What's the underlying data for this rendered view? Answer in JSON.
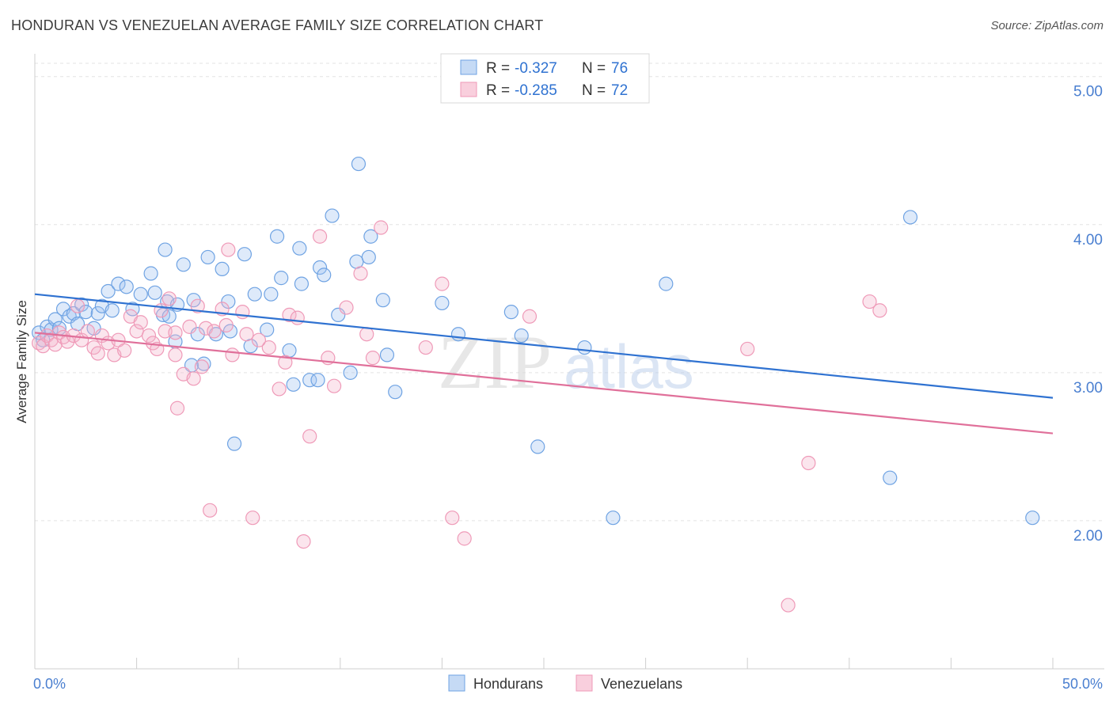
{
  "title": "HONDURAN VS VENEZUELAN AVERAGE FAMILY SIZE CORRELATION CHART",
  "source": "Source: ZipAtlas.com",
  "colors": {
    "blue": "#6fa3e3",
    "blue_line": "#2f72d1",
    "pink": "#ef9ab8",
    "pink_line": "#e0709a",
    "tick_text": "#4a7fd0"
  },
  "legend": {
    "items": [
      {
        "r_label": "R =",
        "r_value": "-0.327",
        "n_label": "N =",
        "n_value": "76"
      },
      {
        "r_label": "R =",
        "r_value": "-0.285",
        "n_label": "N =",
        "n_value": "72"
      }
    ]
  },
  "bottom_legend": {
    "hondurans": "Hondurans",
    "venezuelans": "Venezuelans"
  },
  "watermark": {
    "zip": "ZIP",
    "atlas": "atlas"
  },
  "chart_data": {
    "type": "scatter",
    "title": "HONDURAN VS VENEZUELAN AVERAGE FAMILY SIZE CORRELATION CHART",
    "xlabel": "",
    "ylabel": "Average Family Size",
    "xlim": [
      0,
      50
    ],
    "ylim": [
      1.0,
      5.1
    ],
    "x_tick_labels": [
      "0.0%",
      "50.0%"
    ],
    "y_ticks": [
      2.0,
      3.0,
      4.0,
      5.0
    ],
    "y_tick_labels": [
      "2.00",
      "3.00",
      "4.00",
      "5.00"
    ],
    "grid": true,
    "legend_position": "top-center",
    "series": [
      {
        "name": "Hondurans",
        "color": "#6fa3e3",
        "trend": {
          "x0": 0,
          "y0": 3.53,
          "x1": 50,
          "y1": 2.83
        },
        "points": [
          [
            0.2,
            3.27
          ],
          [
            0.4,
            3.22
          ],
          [
            0.6,
            3.31
          ],
          [
            0.8,
            3.29
          ],
          [
            1.0,
            3.36
          ],
          [
            1.2,
            3.3
          ],
          [
            1.4,
            3.43
          ],
          [
            1.7,
            3.38
          ],
          [
            1.9,
            3.4
          ],
          [
            2.1,
            3.33
          ],
          [
            2.3,
            3.46
          ],
          [
            2.5,
            3.41
          ],
          [
            2.9,
            3.3
          ],
          [
            3.1,
            3.4
          ],
          [
            3.3,
            3.45
          ],
          [
            3.6,
            3.55
          ],
          [
            3.8,
            3.42
          ],
          [
            4.1,
            3.6
          ],
          [
            4.5,
            3.58
          ],
          [
            4.8,
            3.43
          ],
          [
            5.2,
            3.53
          ],
          [
            5.7,
            3.67
          ],
          [
            5.9,
            3.54
          ],
          [
            6.3,
            3.39
          ],
          [
            6.5,
            3.48
          ],
          [
            6.4,
            3.83
          ],
          [
            6.6,
            3.38
          ],
          [
            6.9,
            3.21
          ],
          [
            7.0,
            3.46
          ],
          [
            7.3,
            3.73
          ],
          [
            7.7,
            3.05
          ],
          [
            7.8,
            3.49
          ],
          [
            8.0,
            3.26
          ],
          [
            8.3,
            3.06
          ],
          [
            8.5,
            3.78
          ],
          [
            8.9,
            3.26
          ],
          [
            9.2,
            3.7
          ],
          [
            9.6,
            3.28
          ],
          [
            9.5,
            3.48
          ],
          [
            9.8,
            2.52
          ],
          [
            10.3,
            3.8
          ],
          [
            10.6,
            3.18
          ],
          [
            10.8,
            3.53
          ],
          [
            11.4,
            3.29
          ],
          [
            11.6,
            3.53
          ],
          [
            11.9,
            3.92
          ],
          [
            12.1,
            3.64
          ],
          [
            12.5,
            3.15
          ],
          [
            12.7,
            2.92
          ],
          [
            13.0,
            3.84
          ],
          [
            13.1,
            3.6
          ],
          [
            13.5,
            2.95
          ],
          [
            13.9,
            2.95
          ],
          [
            14.0,
            3.71
          ],
          [
            14.2,
            3.66
          ],
          [
            14.6,
            4.06
          ],
          [
            14.9,
            3.39
          ],
          [
            15.5,
            3.0
          ],
          [
            15.8,
            3.75
          ],
          [
            15.9,
            4.41
          ],
          [
            16.4,
            3.78
          ],
          [
            16.5,
            3.92
          ],
          [
            17.1,
            3.49
          ],
          [
            17.3,
            3.12
          ],
          [
            17.7,
            2.87
          ],
          [
            20.0,
            3.47
          ],
          [
            20.8,
            3.26
          ],
          [
            23.4,
            3.41
          ],
          [
            23.9,
            3.25
          ],
          [
            24.7,
            2.5
          ],
          [
            27.0,
            3.17
          ],
          [
            28.4,
            2.02
          ],
          [
            31.0,
            3.6
          ],
          [
            42.0,
            2.29
          ],
          [
            43.0,
            4.05
          ],
          [
            49.0,
            2.02
          ]
        ]
      },
      {
        "name": "Venezuelans",
        "color": "#ef9ab8",
        "trend": {
          "x0": 0,
          "y0": 3.27,
          "x1": 50,
          "y1": 2.59
        },
        "points": [
          [
            0.2,
            3.2
          ],
          [
            0.4,
            3.18
          ],
          [
            0.6,
            3.25
          ],
          [
            0.8,
            3.22
          ],
          [
            1.0,
            3.19
          ],
          [
            1.2,
            3.27
          ],
          [
            1.4,
            3.24
          ],
          [
            1.6,
            3.21
          ],
          [
            1.9,
            3.25
          ],
          [
            2.1,
            3.45
          ],
          [
            2.3,
            3.22
          ],
          [
            2.6,
            3.28
          ],
          [
            2.9,
            3.17
          ],
          [
            3.1,
            3.13
          ],
          [
            3.3,
            3.25
          ],
          [
            3.6,
            3.2
          ],
          [
            3.9,
            3.12
          ],
          [
            4.1,
            3.22
          ],
          [
            4.4,
            3.15
          ],
          [
            4.7,
            3.38
          ],
          [
            5.0,
            3.28
          ],
          [
            5.2,
            3.34
          ],
          [
            5.6,
            3.25
          ],
          [
            5.8,
            3.2
          ],
          [
            6.0,
            3.16
          ],
          [
            6.2,
            3.42
          ],
          [
            6.4,
            3.28
          ],
          [
            6.6,
            3.5
          ],
          [
            6.9,
            3.27
          ],
          [
            7.0,
            2.76
          ],
          [
            7.3,
            2.99
          ],
          [
            7.6,
            3.31
          ],
          [
            7.8,
            2.96
          ],
          [
            8.0,
            3.45
          ],
          [
            8.2,
            3.04
          ],
          [
            8.4,
            3.3
          ],
          [
            8.6,
            2.07
          ],
          [
            8.8,
            3.28
          ],
          [
            9.2,
            3.43
          ],
          [
            9.5,
            3.83
          ],
          [
            9.7,
            3.12
          ],
          [
            10.2,
            3.41
          ],
          [
            10.4,
            3.26
          ],
          [
            10.7,
            2.02
          ],
          [
            11.5,
            3.17
          ],
          [
            12.0,
            2.89
          ],
          [
            12.3,
            3.07
          ],
          [
            12.5,
            3.39
          ],
          [
            12.9,
            3.37
          ],
          [
            13.2,
            1.86
          ],
          [
            13.5,
            2.57
          ],
          [
            14.0,
            3.92
          ],
          [
            14.4,
            3.1
          ],
          [
            14.7,
            2.91
          ],
          [
            15.3,
            3.44
          ],
          [
            16.0,
            3.67
          ],
          [
            16.3,
            3.26
          ],
          [
            16.6,
            3.1
          ],
          [
            17.0,
            3.98
          ],
          [
            19.2,
            3.17
          ],
          [
            20.5,
            2.02
          ],
          [
            21.1,
            1.88
          ],
          [
            24.3,
            3.38
          ],
          [
            35.0,
            3.16
          ],
          [
            37.0,
            1.43
          ],
          [
            38.0,
            2.39
          ],
          [
            41.0,
            3.48
          ],
          [
            41.5,
            3.42
          ],
          [
            20.0,
            3.6
          ],
          [
            9.4,
            3.32
          ],
          [
            11.0,
            3.22
          ],
          [
            6.9,
            3.12
          ]
        ]
      }
    ]
  }
}
